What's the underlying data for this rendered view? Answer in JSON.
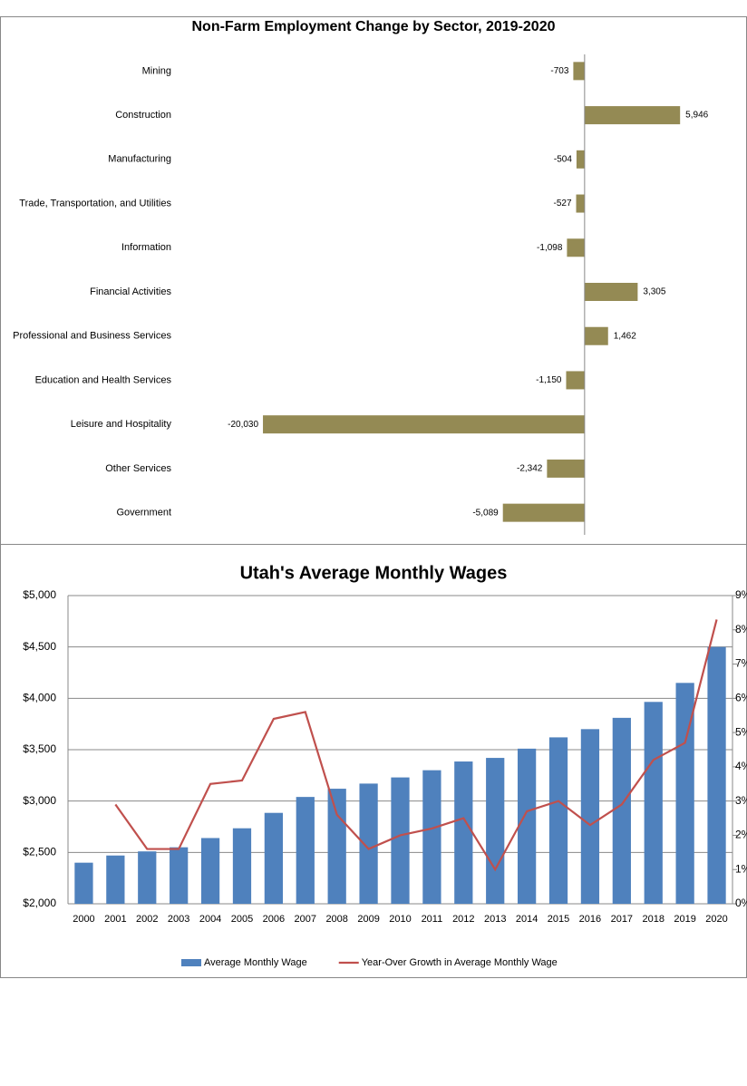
{
  "chart_data": [
    {
      "type": "bar",
      "orientation": "horizontal",
      "title": "Non-Farm Employment Change by Sector, 2019-2020",
      "categories": [
        "Mining",
        "Construction",
        "Manufacturing",
        "Trade, Transportation, and Utilities",
        "Information",
        "Financial Activities",
        "Professional and Business Services",
        "Education and Health Services",
        "Leisure and Hospitality",
        "Other Services",
        "Government"
      ],
      "values": [
        -703,
        5946,
        -504,
        -527,
        -1098,
        3305,
        1462,
        -1150,
        -20030,
        -2342,
        -5089
      ],
      "value_labels": [
        "-703",
        "5,946",
        "-504",
        "-527",
        "-1,098",
        "3,305",
        "1,462",
        "-1,150",
        "-20,030",
        "-2,342",
        "-5,089"
      ],
      "color": "#948a54",
      "xlim": [
        -25000,
        10000
      ]
    },
    {
      "type": "combo",
      "title": "Utah's Average Monthly Wages",
      "categories": [
        "2000",
        "2001",
        "2002",
        "2003",
        "2004",
        "2005",
        "2006",
        "2007",
        "2008",
        "2009",
        "2010",
        "2011",
        "2012",
        "2013",
        "2014",
        "2015",
        "2016",
        "2017",
        "2018",
        "2019",
        "2020"
      ],
      "series": [
        {
          "name": "Average Monthly Wage",
          "type": "bar",
          "color": "#4f81bd",
          "values": [
            2400,
            2470,
            2510,
            2550,
            2640,
            2735,
            2885,
            3040,
            3120,
            3170,
            3230,
            3300,
            3385,
            3420,
            3510,
            3620,
            3700,
            3810,
            3965,
            4150,
            4500
          ]
        },
        {
          "name": "Year-Over Growth in Average Monthly Wage",
          "type": "line",
          "color": "#c0504d",
          "axis": "y2",
          "values": [
            null,
            2.9,
            1.6,
            1.6,
            3.5,
            3.6,
            5.4,
            5.6,
            2.6,
            1.6,
            2.0,
            2.2,
            2.5,
            1.0,
            2.7,
            3.0,
            2.3,
            2.9,
            4.2,
            4.7,
            8.3
          ]
        }
      ],
      "ylim": [
        2000,
        5000
      ],
      "yticks": [
        {
          "value": 2000,
          "label": "$2,000"
        },
        {
          "value": 2500,
          "label": "$2,500"
        },
        {
          "value": 3000,
          "label": "$3,000"
        },
        {
          "value": 3500,
          "label": "$3,500"
        },
        {
          "value": 4000,
          "label": "$4,000"
        },
        {
          "value": 4500,
          "label": "$4,500"
        },
        {
          "value": 5000,
          "label": "$5,000"
        }
      ],
      "y2lim": [
        0,
        9
      ],
      "y2ticks": [
        {
          "value": 0,
          "label": "0%"
        },
        {
          "value": 1,
          "label": "1%"
        },
        {
          "value": 2,
          "label": "2%"
        },
        {
          "value": 3,
          "label": "3%"
        },
        {
          "value": 4,
          "label": "4%"
        },
        {
          "value": 5,
          "label": "5%"
        },
        {
          "value": 6,
          "label": "6%"
        },
        {
          "value": 7,
          "label": "7%"
        },
        {
          "value": 8,
          "label": "8%"
        },
        {
          "value": 9,
          "label": "9%"
        }
      ],
      "grid": true,
      "legend": "bottom"
    }
  ]
}
